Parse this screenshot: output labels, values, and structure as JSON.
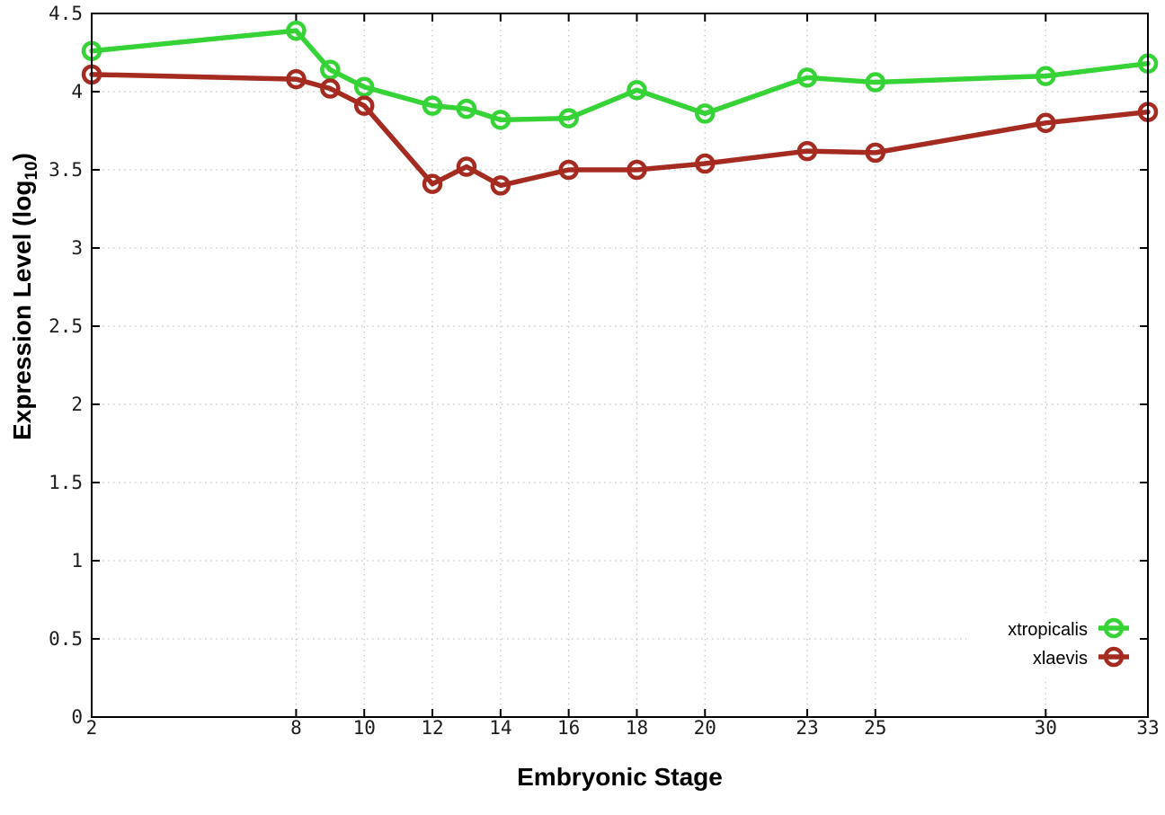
{
  "chart_data": {
    "type": "line",
    "title": "",
    "xlabel": "Embryonic Stage",
    "ylabel": "Expression Level (log10)",
    "ylabel_rich": {
      "text": "Expression Level (log",
      "subscript": "10",
      "suffix": ")"
    },
    "x": [
      2,
      8,
      9,
      10,
      12,
      13,
      14,
      16,
      18,
      20,
      23,
      25,
      30,
      33
    ],
    "series": [
      {
        "name": "xtropicalis",
        "color": "#36d336",
        "marker": "open-circle",
        "values": [
          4.26,
          4.39,
          4.14,
          4.03,
          3.91,
          3.89,
          3.82,
          3.83,
          4.01,
          3.86,
          4.09,
          4.06,
          4.1,
          4.18
        ]
      },
      {
        "name": "xlaevis",
        "color": "#a52a20",
        "marker": "open-circle",
        "values": [
          4.11,
          4.08,
          4.02,
          3.91,
          3.41,
          3.52,
          3.4,
          3.5,
          3.5,
          3.54,
          3.62,
          3.61,
          3.8,
          3.87
        ]
      }
    ],
    "xticks": {
      "values": [
        2,
        8,
        10,
        12,
        14,
        16,
        18,
        20,
        23,
        25,
        30,
        33
      ],
      "labels": [
        "2",
        "8",
        "10",
        "12",
        "14",
        "16",
        "18",
        "20",
        "23",
        "25",
        "30",
        "33"
      ]
    },
    "yticks": {
      "values": [
        0,
        0.5,
        1,
        1.5,
        2,
        2.5,
        3,
        3.5,
        4,
        4.5
      ],
      "labels": [
        "0",
        "0.5",
        "1",
        "1.5",
        "2",
        "2.5",
        "3",
        "3.5",
        "4",
        "4.5"
      ]
    },
    "xlim": [
      2,
      33
    ],
    "ylim": [
      0,
      4.5
    ],
    "grid": true,
    "grid_style": "dotted",
    "legend_position": "bottom-right",
    "colors": {
      "background": "#ffffff",
      "grid": "#c0c0c0",
      "axis": "#000000",
      "tick_label": "#1c1c1c"
    }
  }
}
